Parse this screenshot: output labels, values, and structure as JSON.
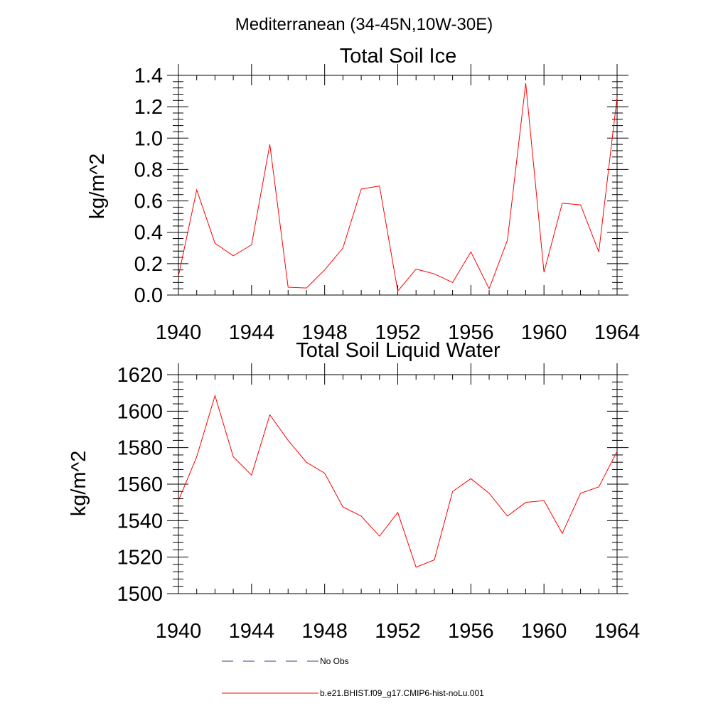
{
  "suptitle": "Mediterranean (34-45N,10W-30E)",
  "colors": {
    "model": "#ff0000",
    "obs": "#3a3a8c",
    "axes": "#000000"
  },
  "legend": {
    "entries": [
      {
        "label": "No Obs",
        "style": "dashed",
        "color": "#3a3a8c"
      },
      {
        "label": "b.e21.BHIST.f09_g17.CMIP6-hist-noLu.001",
        "style": "solid",
        "color": "#ff0000"
      }
    ]
  },
  "chart_data": [
    {
      "type": "line",
      "title": "Total Soil Ice",
      "xlabel": "",
      "ylabel": "kg/m^2",
      "xlim": [
        1940,
        1964
      ],
      "ylim": [
        0.0,
        1.4
      ],
      "xticks": [
        1940,
        1944,
        1948,
        1952,
        1956,
        1960,
        1964
      ],
      "yticks": [
        0.0,
        0.2,
        0.4,
        0.6,
        0.8,
        1.0,
        1.2,
        1.4
      ],
      "ytick_labels": [
        "0.0",
        "0.2",
        "0.4",
        "0.6",
        "0.8",
        "1.0",
        "1.2",
        "1.4"
      ],
      "x": [
        1940,
        1941,
        1942,
        1943,
        1944,
        1945,
        1946,
        1947,
        1948,
        1949,
        1950,
        1951,
        1952,
        1953,
        1954,
        1955,
        1956,
        1957,
        1958,
        1959,
        1960,
        1961,
        1962,
        1963,
        1964
      ],
      "series": [
        {
          "color": "#ff0000",
          "values": [
            0.12,
            0.67,
            0.33,
            0.25,
            0.32,
            0.96,
            0.05,
            0.045,
            0.16,
            0.3,
            0.675,
            0.695,
            0.025,
            0.165,
            0.135,
            0.08,
            0.275,
            0.04,
            0.35,
            1.35,
            0.145,
            0.585,
            0.575,
            0.275,
            1.26
          ]
        }
      ]
    },
    {
      "type": "line",
      "title": "Total Soil Liquid Water",
      "xlabel": "",
      "ylabel": "kg/m^2",
      "xlim": [
        1940,
        1964
      ],
      "ylim": [
        1500,
        1620
      ],
      "xticks": [
        1940,
        1944,
        1948,
        1952,
        1956,
        1960,
        1964
      ],
      "yticks": [
        1500,
        1520,
        1540,
        1560,
        1580,
        1600,
        1620
      ],
      "ytick_labels": [
        "1500",
        "1520",
        "1540",
        "1560",
        "1580",
        "1600",
        "1620"
      ],
      "x": [
        1940,
        1941,
        1942,
        1943,
        1944,
        1945,
        1946,
        1947,
        1948,
        1949,
        1950,
        1951,
        1952,
        1953,
        1954,
        1955,
        1956,
        1957,
        1958,
        1959,
        1960,
        1961,
        1962,
        1963,
        1964
      ],
      "series": [
        {
          "color": "#ff0000",
          "values": [
            1551,
            1575,
            1608.5,
            1575,
            1565,
            1598,
            1584,
            1572,
            1566,
            1547.5,
            1542.5,
            1531.5,
            1544.5,
            1514.5,
            1518.5,
            1556,
            1563,
            1555,
            1542.5,
            1550,
            1551,
            1533,
            1555,
            1558.5,
            1578
          ]
        }
      ]
    }
  ]
}
